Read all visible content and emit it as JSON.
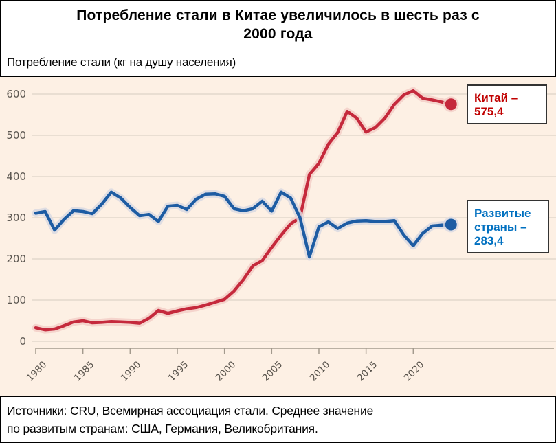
{
  "header": {
    "title_line1": "Потребление стали в Китае увеличилось в шесть раз с",
    "title_line2": "2000 года",
    "subtitle": "Потребление стали (кг на душу населения)"
  },
  "footer": {
    "source_line1": "Источники: CRU, Всемирная ассоциация стали.  Среднее значение",
    "source_line2": "по развитым странам: США, Германия, Великобритания."
  },
  "chart_data": {
    "type": "line",
    "title": "Потребление стали в Китае увеличилось в шесть раз с 2000 года",
    "subtitle": "Потребление стали (кг на душу населения)",
    "xlabel": "",
    "ylabel": "кг на душу населения",
    "ylim": [
      0,
      600
    ],
    "y_ticks": [
      0,
      100,
      200,
      300,
      400,
      500,
      600
    ],
    "x_ticks": [
      1980,
      1985,
      1990,
      1995,
      2000,
      2005,
      2010,
      2015,
      2020
    ],
    "grid": true,
    "plot_bg": "#fdf0e4",
    "grid_color": "#ddd3c7",
    "axis_color": "#a39a8d",
    "years": [
      1980,
      1981,
      1982,
      1983,
      1984,
      1985,
      1986,
      1987,
      1988,
      1989,
      1990,
      1991,
      1992,
      1993,
      1994,
      1995,
      1996,
      1997,
      1998,
      1999,
      2000,
      2001,
      2002,
      2003,
      2004,
      2005,
      2006,
      2007,
      2008,
      2009,
      2010,
      2011,
      2012,
      2013,
      2014,
      2015,
      2016,
      2017,
      2018,
      2019,
      2020,
      2021,
      2022,
      2023,
      2024
    ],
    "series": [
      {
        "name": "Китай",
        "color": "#c5293c",
        "halo": "#f3cfc8",
        "label_color": "#c00000",
        "end_value_text": "575,4",
        "end_label": {
          "line1": "Китай –",
          "line2": "575,4"
        },
        "values": [
          33,
          28,
          30,
          38,
          47,
          50,
          45,
          46,
          48,
          47,
          46,
          44,
          56,
          75,
          68,
          74,
          79,
          82,
          88,
          95,
          102,
          122,
          150,
          183,
          196,
          228,
          258,
          285,
          300,
          405,
          432,
          478,
          507,
          558,
          542,
          508,
          519,
          542,
          575,
          598,
          608,
          590,
          586,
          581,
          575.4
        ]
      },
      {
        "name": "Развитые страны",
        "color": "#1d5ca3",
        "halo": "#d9d9e2",
        "label_color": "#0070c0",
        "end_value_text": "283,4",
        "end_label": {
          "line1": "Развитые",
          "line2": "страны –",
          "line3": "283,4"
        },
        "values": [
          311,
          315,
          270,
          296,
          317,
          315,
          310,
          333,
          362,
          348,
          325,
          305,
          308,
          291,
          328,
          330,
          320,
          345,
          357,
          358,
          352,
          322,
          317,
          322,
          340,
          316,
          362,
          348,
          300,
          205,
          278,
          290,
          274,
          287,
          292,
          293,
          291,
          291,
          293,
          258,
          232,
          262,
          280,
          282,
          283.4
        ]
      }
    ]
  }
}
